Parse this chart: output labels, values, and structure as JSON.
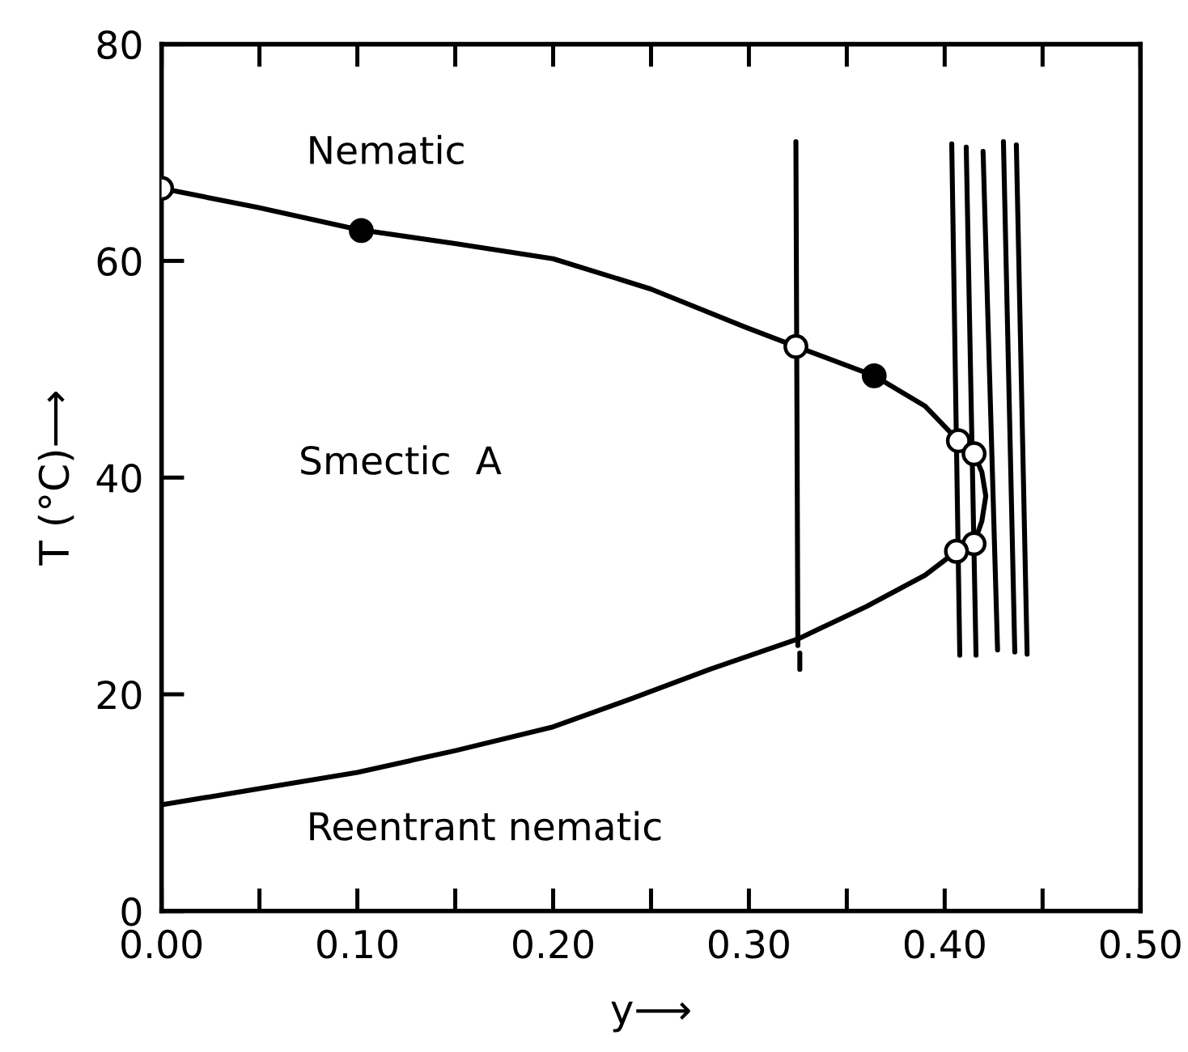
{
  "chart_data": {
    "type": "line",
    "xlabel": "y⟶",
    "ylabel": "T (°C)⟶",
    "xlim": [
      0,
      0.5
    ],
    "ylim": [
      0,
      80
    ],
    "xticks": [
      {
        "value": 0,
        "label": "0.00"
      },
      {
        "value": 0.05,
        "label": null
      },
      {
        "value": 0.1,
        "label": "0.10"
      },
      {
        "value": 0.15,
        "label": null
      },
      {
        "value": 0.2,
        "label": "0.20"
      },
      {
        "value": 0.25,
        "label": null
      },
      {
        "value": 0.3,
        "label": "0.30"
      },
      {
        "value": 0.35,
        "label": null
      },
      {
        "value": 0.4,
        "label": "0.40"
      },
      {
        "value": 0.45,
        "label": null
      },
      {
        "value": 0.5,
        "label": "0.50"
      }
    ],
    "yticks": [
      0,
      20,
      40,
      60,
      80
    ],
    "grid": false,
    "legend": false,
    "series": [
      {
        "color": "#000000",
        "marker": "none",
        "x": [
          0,
          0.05,
          0.1,
          0.15,
          0.2,
          0.25,
          0.298,
          0.324,
          0.364,
          0.39,
          0.407,
          0.415,
          0.419,
          0.421,
          0.419,
          0.415,
          0.406,
          0.39,
          0.36,
          0.325,
          0.28,
          0.24,
          0.2,
          0.15,
          0.1,
          0.05,
          0
        ],
        "values": [
          66.7,
          64.9,
          62.9,
          61.6,
          60.2,
          57.4,
          53.9,
          52.1,
          49.4,
          46.6,
          43.4,
          42.2,
          40.5,
          38.3,
          36.0,
          33.9,
          33.2,
          31.0,
          28.1,
          25.1,
          22.3,
          19.6,
          17.0,
          14.8,
          12.8,
          11.3,
          9.8
        ]
      },
      {
        "color": "#000000",
        "marker": "none",
        "x": [
          0.324,
          0.325
        ],
        "values": [
          71.0,
          24.5
        ]
      },
      {
        "color": "#000000",
        "marker": "none",
        "x": [
          0.326,
          0.326
        ],
        "values": [
          23.8,
          22.3
        ]
      },
      {
        "type": "line",
        "color": "#000000",
        "marker": "none",
        "x": [
          0.4036,
          0.4077
        ],
        "values": [
          70.8,
          23.6
        ]
      },
      {
        "type": "line",
        "color": "#000000",
        "marker": "none",
        "x": [
          0.411,
          0.416
        ],
        "values": [
          70.5,
          23.6
        ]
      },
      {
        "type": "line",
        "color": "#000000",
        "marker": "none",
        "x": [
          0.4196,
          0.427
        ],
        "values": [
          70.1,
          24.1
        ]
      },
      {
        "type": "line",
        "color": "#000000",
        "marker": "none",
        "x": [
          0.43,
          0.4358
        ],
        "values": [
          71.0,
          23.9
        ]
      },
      {
        "type": "line",
        "color": "#000000",
        "marker": "none",
        "x": [
          0.4366,
          0.4421
        ],
        "values": [
          70.7,
          23.7
        ]
      },
      {
        "type": "scatter",
        "color": "#ffffff",
        "marker": "circle",
        "x": [
          0,
          0.324,
          0.407,
          0.415,
          0.415,
          0.406
        ],
        "values": [
          66.7,
          52.1,
          43.4,
          42.2,
          33.9,
          33.2
        ]
      },
      {
        "type": "scatter",
        "color": "#000000",
        "marker": "circle",
        "x": [
          0.102,
          0.364
        ],
        "values": [
          62.8,
          49.4
        ]
      }
    ],
    "annotations": [
      "Nematic",
      "Smectic  A",
      "Reentrant nematic"
    ]
  }
}
